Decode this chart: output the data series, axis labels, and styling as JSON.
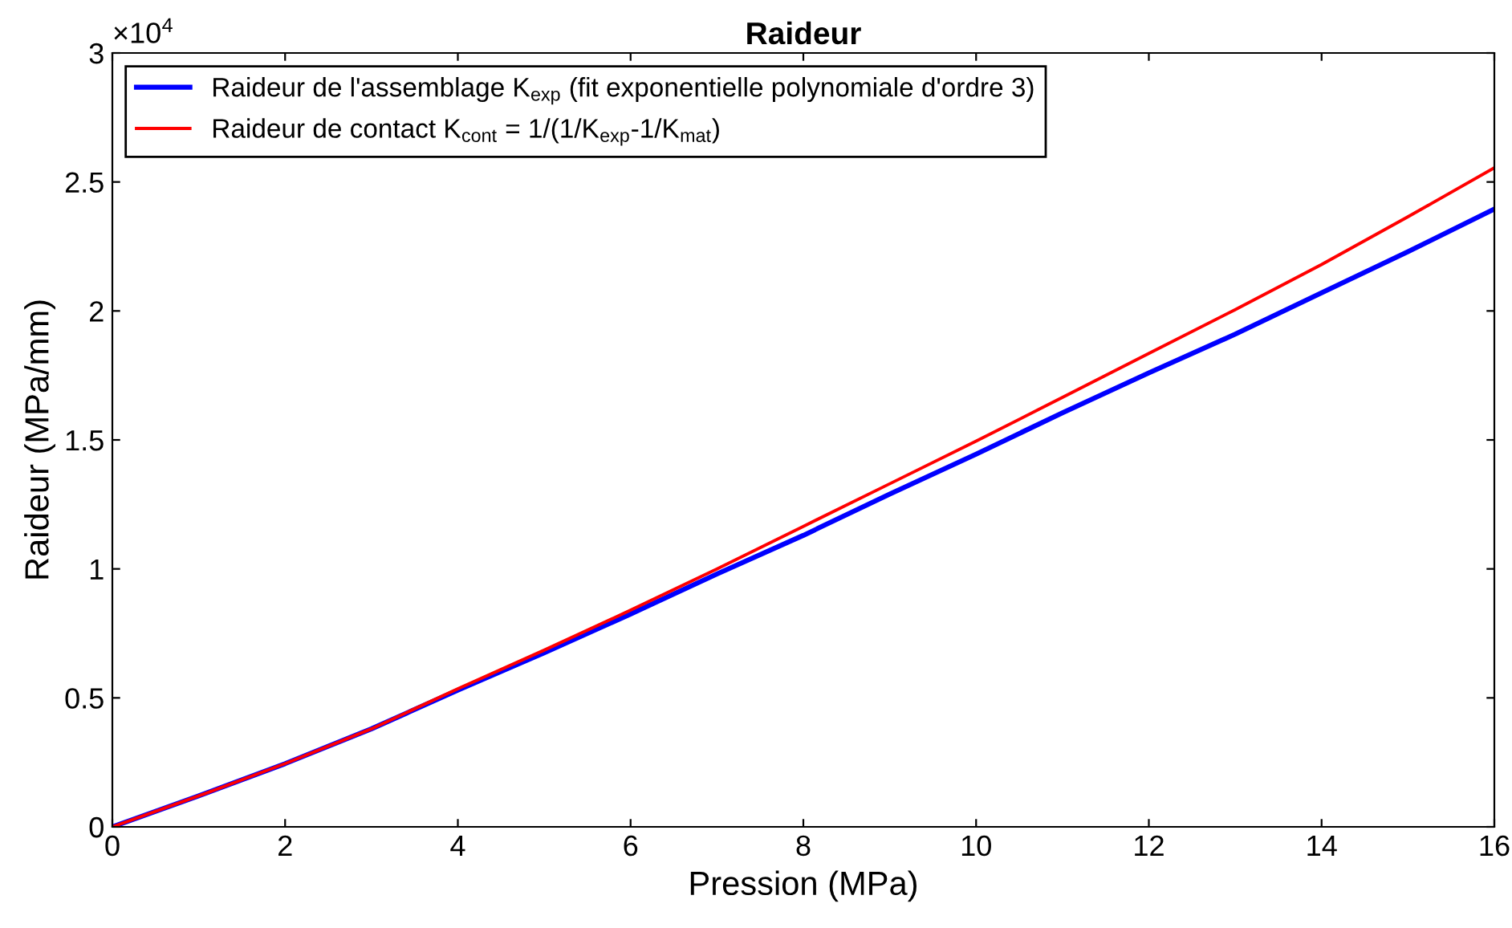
{
  "chart_data": {
    "type": "line",
    "title": "Raideur",
    "xlabel": "Pression (MPa)",
    "ylabel": "Raideur (MPa/mm)",
    "annotations": [
      "×10$^{4}$"
    ],
    "x": [
      0,
      1,
      2,
      3,
      4,
      5,
      6,
      7,
      8,
      9,
      10,
      11,
      12,
      13,
      14,
      15,
      16
    ],
    "series": [
      {
        "name": "Raideur de l'assemblage K$_{exp}$ (fit exponentielle polynomiale d'ordre 3)",
        "color": "#0000ff",
        "values": [
          0,
          0.12,
          0.245,
          0.38,
          0.53,
          0.675,
          0.825,
          0.98,
          1.13,
          1.29,
          1.445,
          1.605,
          1.76,
          1.91,
          2.07,
          2.23,
          2.395
        ]
      },
      {
        "name": "Raideur de contact K$_{cont}$ = 1/(1/K$_{exp}$-1/K$_{mat}$)",
        "color": "#ff0000",
        "values": [
          0,
          0.12,
          0.245,
          0.38,
          0.535,
          0.685,
          0.84,
          1.0,
          1.165,
          1.33,
          1.495,
          1.665,
          1.835,
          2.005,
          2.18,
          2.365,
          2.555
        ]
      }
    ],
    "xlim": [
      0,
      16
    ],
    "xticks": [
      0,
      2,
      4,
      6,
      8,
      10,
      12,
      14,
      16
    ],
    "ylim": [
      0,
      3
    ],
    "yticks": [
      0,
      0.5,
      1,
      1.5,
      2,
      2.5,
      3
    ],
    "legend": "top left",
    "grid": false,
    "marker": "none",
    "line_style": "solid"
  }
}
